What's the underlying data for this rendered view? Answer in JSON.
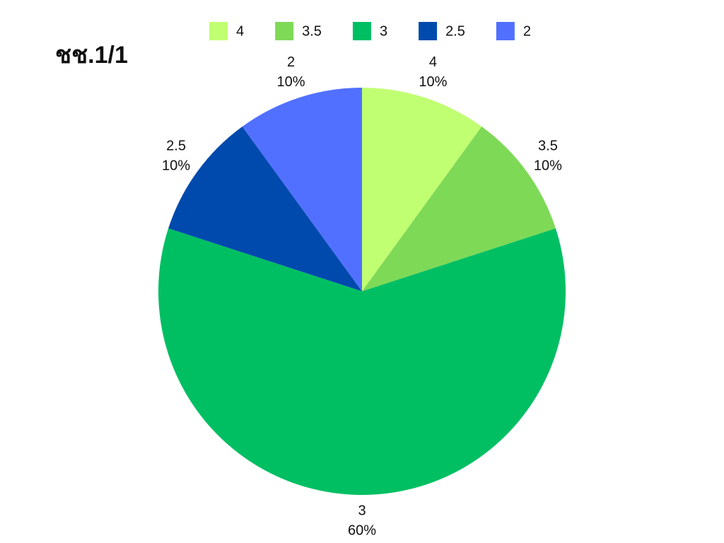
{
  "chart_data": {
    "type": "pie",
    "title": "ชช.1/1",
    "categories": [
      "4",
      "3.5",
      "3",
      "2.5",
      "2"
    ],
    "values": [
      10,
      10,
      60,
      10,
      10
    ],
    "value_labels": [
      "10%",
      "10%",
      "60%",
      "10%",
      "10%"
    ],
    "colors": [
      "#c1ff72",
      "#7ed957",
      "#00bf63",
      "#004aad",
      "#5170ff"
    ],
    "legend": "top"
  }
}
